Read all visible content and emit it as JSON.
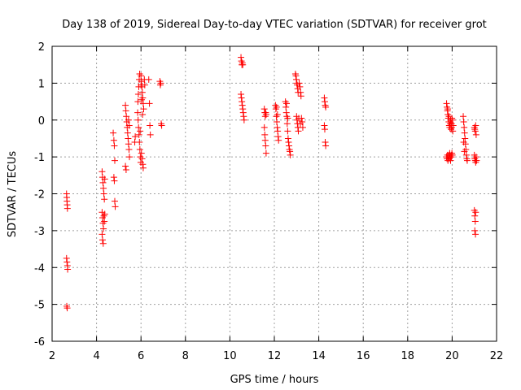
{
  "chart_data": {
    "type": "scatter",
    "title": "Day 138 of 2019, Sidereal Day-to-day VTEC variation (SDTVAR) for receiver grot",
    "xlabel": "GPS time / hours",
    "ylabel": "SDTVAR / TECUs",
    "xlim": [
      2,
      22
    ],
    "ylim": [
      -6,
      2
    ],
    "x_ticks": [
      "2",
      "4",
      "6",
      "8",
      "10",
      "12",
      "14",
      "16",
      "18",
      "20",
      "22"
    ],
    "y_ticks": [
      "-6",
      "-5",
      "-4",
      "-3",
      "-2",
      "-1",
      "0",
      "1",
      "2"
    ],
    "grid": true,
    "marker": "+",
    "series": [
      {
        "name": "SDTVAR",
        "color": "#ff0000",
        "points": [
          [
            2.65,
            -2.0
          ],
          [
            2.66,
            -2.1
          ],
          [
            2.67,
            -2.2
          ],
          [
            2.68,
            -2.3
          ],
          [
            2.69,
            -2.4
          ],
          [
            2.65,
            -3.75
          ],
          [
            2.67,
            -3.85
          ],
          [
            2.69,
            -3.95
          ],
          [
            2.7,
            -4.05
          ],
          [
            2.66,
            -5.05
          ],
          [
            2.68,
            -5.1
          ],
          [
            4.25,
            -1.4
          ],
          [
            4.27,
            -1.55
          ],
          [
            4.29,
            -1.7
          ],
          [
            4.31,
            -1.85
          ],
          [
            4.33,
            -2.0
          ],
          [
            4.35,
            -2.15
          ],
          [
            4.37,
            -1.6
          ],
          [
            4.25,
            -2.5
          ],
          [
            4.27,
            -2.65
          ],
          [
            4.29,
            -2.8
          ],
          [
            4.31,
            -2.95
          ],
          [
            4.33,
            -2.6
          ],
          [
            4.35,
            -2.75
          ],
          [
            4.37,
            -2.55
          ],
          [
            4.25,
            -3.1
          ],
          [
            4.27,
            -3.25
          ],
          [
            4.3,
            -3.35
          ],
          [
            4.75,
            -0.35
          ],
          [
            4.78,
            -0.55
          ],
          [
            4.8,
            -0.7
          ],
          [
            4.82,
            -1.1
          ],
          [
            4.78,
            -1.55
          ],
          [
            4.8,
            -1.65
          ],
          [
            4.82,
            -2.2
          ],
          [
            4.84,
            -2.35
          ],
          [
            5.3,
            0.4
          ],
          [
            5.32,
            0.25
          ],
          [
            5.34,
            0.1
          ],
          [
            5.36,
            -0.05
          ],
          [
            5.38,
            -0.2
          ],
          [
            5.4,
            -0.35
          ],
          [
            5.42,
            -0.5
          ],
          [
            5.44,
            -0.65
          ],
          [
            5.46,
            -0.8
          ],
          [
            5.48,
            -1.0
          ],
          [
            5.3,
            -1.25
          ],
          [
            5.33,
            -1.35
          ],
          [
            5.44,
            0.0
          ],
          [
            5.47,
            -0.15
          ],
          [
            5.72,
            -0.6
          ],
          [
            5.74,
            -0.45
          ],
          [
            5.85,
            0.2
          ],
          [
            5.87,
            0.0
          ],
          [
            5.89,
            -0.2
          ],
          [
            5.91,
            -0.4
          ],
          [
            5.93,
            -0.6
          ],
          [
            5.95,
            -0.8
          ],
          [
            5.97,
            -1.0
          ],
          [
            5.99,
            -1.15
          ],
          [
            5.86,
            0.5
          ],
          [
            5.88,
            0.7
          ],
          [
            5.9,
            0.9
          ],
          [
            5.92,
            1.1
          ],
          [
            5.94,
            1.25
          ],
          [
            6.0,
            1.2
          ],
          [
            6.02,
            1.05
          ],
          [
            6.04,
            0.9
          ],
          [
            6.06,
            0.75
          ],
          [
            6.08,
            0.6
          ],
          [
            6.1,
            0.45
          ],
          [
            6.12,
            0.3
          ],
          [
            6.02,
            -0.9
          ],
          [
            6.05,
            -1.05
          ],
          [
            6.08,
            -1.2
          ],
          [
            6.1,
            -1.3
          ],
          [
            6.0,
            0.95
          ],
          [
            6.03,
            0.55
          ],
          [
            6.07,
            0.15
          ],
          [
            5.96,
            -0.3
          ],
          [
            6.15,
            1.1
          ],
          [
            6.17,
            0.95
          ],
          [
            6.35,
            1.1
          ],
          [
            6.38,
            0.45
          ],
          [
            6.4,
            -0.15
          ],
          [
            6.42,
            -0.4
          ],
          [
            6.85,
            1.05
          ],
          [
            6.87,
            0.95
          ],
          [
            6.89,
            1.0
          ],
          [
            6.91,
            -0.1
          ],
          [
            6.93,
            -0.15
          ],
          [
            10.5,
            1.7
          ],
          [
            10.52,
            1.6
          ],
          [
            10.54,
            1.5
          ],
          [
            10.56,
            1.55
          ],
          [
            10.58,
            1.5
          ],
          [
            10.5,
            0.7
          ],
          [
            10.52,
            0.6
          ],
          [
            10.54,
            0.5
          ],
          [
            10.56,
            0.4
          ],
          [
            10.58,
            0.3
          ],
          [
            10.6,
            0.2
          ],
          [
            10.62,
            0.1
          ],
          [
            10.64,
            0.0
          ],
          [
            11.55,
            0.3
          ],
          [
            11.57,
            0.2
          ],
          [
            11.59,
            0.1
          ],
          [
            11.61,
            0.2
          ],
          [
            11.63,
            0.15
          ],
          [
            11.55,
            -0.2
          ],
          [
            11.57,
            -0.4
          ],
          [
            11.59,
            -0.55
          ],
          [
            11.61,
            -0.7
          ],
          [
            11.63,
            -0.9
          ],
          [
            12.05,
            0.4
          ],
          [
            12.07,
            0.3
          ],
          [
            12.09,
            0.1
          ],
          [
            12.11,
            -0.05
          ],
          [
            12.13,
            -0.2
          ],
          [
            12.15,
            -0.3
          ],
          [
            12.17,
            -0.45
          ],
          [
            12.19,
            -0.55
          ],
          [
            12.1,
            0.35
          ],
          [
            12.14,
            0.15
          ],
          [
            12.5,
            0.5
          ],
          [
            12.52,
            0.35
          ],
          [
            12.54,
            0.2
          ],
          [
            12.56,
            0.1
          ],
          [
            12.58,
            -0.1
          ],
          [
            12.6,
            -0.3
          ],
          [
            12.62,
            -0.5
          ],
          [
            12.64,
            -0.6
          ],
          [
            12.66,
            -0.7
          ],
          [
            12.68,
            -0.8
          ],
          [
            12.7,
            -0.85
          ],
          [
            12.72,
            -0.95
          ],
          [
            12.55,
            0.45
          ],
          [
            12.6,
            0.05
          ],
          [
            12.95,
            1.25
          ],
          [
            12.97,
            1.2
          ],
          [
            12.99,
            1.1
          ],
          [
            13.01,
            1.0
          ],
          [
            13.03,
            0.95
          ],
          [
            13.05,
            0.85
          ],
          [
            13.07,
            0.75
          ],
          [
            13.0,
            0.1
          ],
          [
            13.02,
            0.0
          ],
          [
            13.04,
            -0.1
          ],
          [
            13.06,
            -0.2
          ],
          [
            13.08,
            -0.3
          ],
          [
            13.12,
            1.0
          ],
          [
            13.15,
            0.9
          ],
          [
            13.18,
            0.75
          ],
          [
            13.2,
            0.65
          ],
          [
            13.22,
            0.05
          ],
          [
            13.25,
            -0.05
          ],
          [
            13.28,
            -0.2
          ],
          [
            13.1,
            0.05
          ],
          [
            13.17,
            -0.1
          ],
          [
            14.25,
            0.6
          ],
          [
            14.27,
            0.5
          ],
          [
            14.29,
            0.4
          ],
          [
            14.31,
            0.35
          ],
          [
            14.25,
            -0.15
          ],
          [
            14.27,
            -0.25
          ],
          [
            14.29,
            -0.6
          ],
          [
            14.31,
            -0.7
          ],
          [
            19.75,
            0.45
          ],
          [
            19.77,
            0.35
          ],
          [
            19.79,
            0.25
          ],
          [
            19.81,
            0.15
          ],
          [
            19.83,
            0.05
          ],
          [
            19.85,
            -0.05
          ],
          [
            19.87,
            -0.15
          ],
          [
            19.89,
            -0.2
          ],
          [
            19.91,
            -0.1
          ],
          [
            19.93,
            0.0
          ],
          [
            19.95,
            -0.25
          ],
          [
            19.97,
            -0.1
          ],
          [
            19.99,
            0.05
          ],
          [
            20.01,
            0.0
          ],
          [
            20.03,
            -0.3
          ],
          [
            20.05,
            -0.15
          ],
          [
            19.8,
            0.3
          ],
          [
            19.86,
            0.1
          ],
          [
            19.92,
            -0.05
          ],
          [
            19.98,
            -0.2
          ],
          [
            19.75,
            -1.0
          ],
          [
            19.77,
            -1.05
          ],
          [
            19.79,
            -0.95
          ],
          [
            19.81,
            -1.1
          ],
          [
            19.83,
            -1.0
          ],
          [
            19.85,
            -0.95
          ],
          [
            19.87,
            -1.05
          ],
          [
            19.89,
            -0.9
          ],
          [
            19.91,
            -1.0
          ],
          [
            19.93,
            -1.1
          ],
          [
            19.95,
            -0.95
          ],
          [
            19.97,
            -1.0
          ],
          [
            19.99,
            -0.9
          ],
          [
            20.01,
            -0.95
          ],
          [
            20.5,
            0.1
          ],
          [
            20.52,
            -0.05
          ],
          [
            20.54,
            -0.2
          ],
          [
            20.56,
            -0.35
          ],
          [
            20.58,
            -0.5
          ],
          [
            20.6,
            -0.65
          ],
          [
            20.62,
            -0.8
          ],
          [
            20.64,
            -0.95
          ],
          [
            20.66,
            -1.05
          ],
          [
            20.68,
            -1.1
          ],
          [
            20.52,
            -0.6
          ],
          [
            20.55,
            -0.85
          ],
          [
            21.0,
            -0.2
          ],
          [
            21.02,
            -0.25
          ],
          [
            21.04,
            -0.3
          ],
          [
            21.06,
            -0.15
          ],
          [
            21.08,
            -0.4
          ],
          [
            21.0,
            -0.95
          ],
          [
            21.02,
            -1.05
          ],
          [
            21.04,
            -1.1
          ],
          [
            21.06,
            -1.15
          ],
          [
            21.08,
            -1.0
          ],
          [
            21.1,
            -1.1
          ],
          [
            21.0,
            -2.45
          ],
          [
            21.02,
            -2.6
          ],
          [
            21.04,
            -2.75
          ],
          [
            21.06,
            -2.5
          ],
          [
            21.02,
            -3.0
          ],
          [
            21.05,
            -3.1
          ]
        ]
      }
    ]
  }
}
